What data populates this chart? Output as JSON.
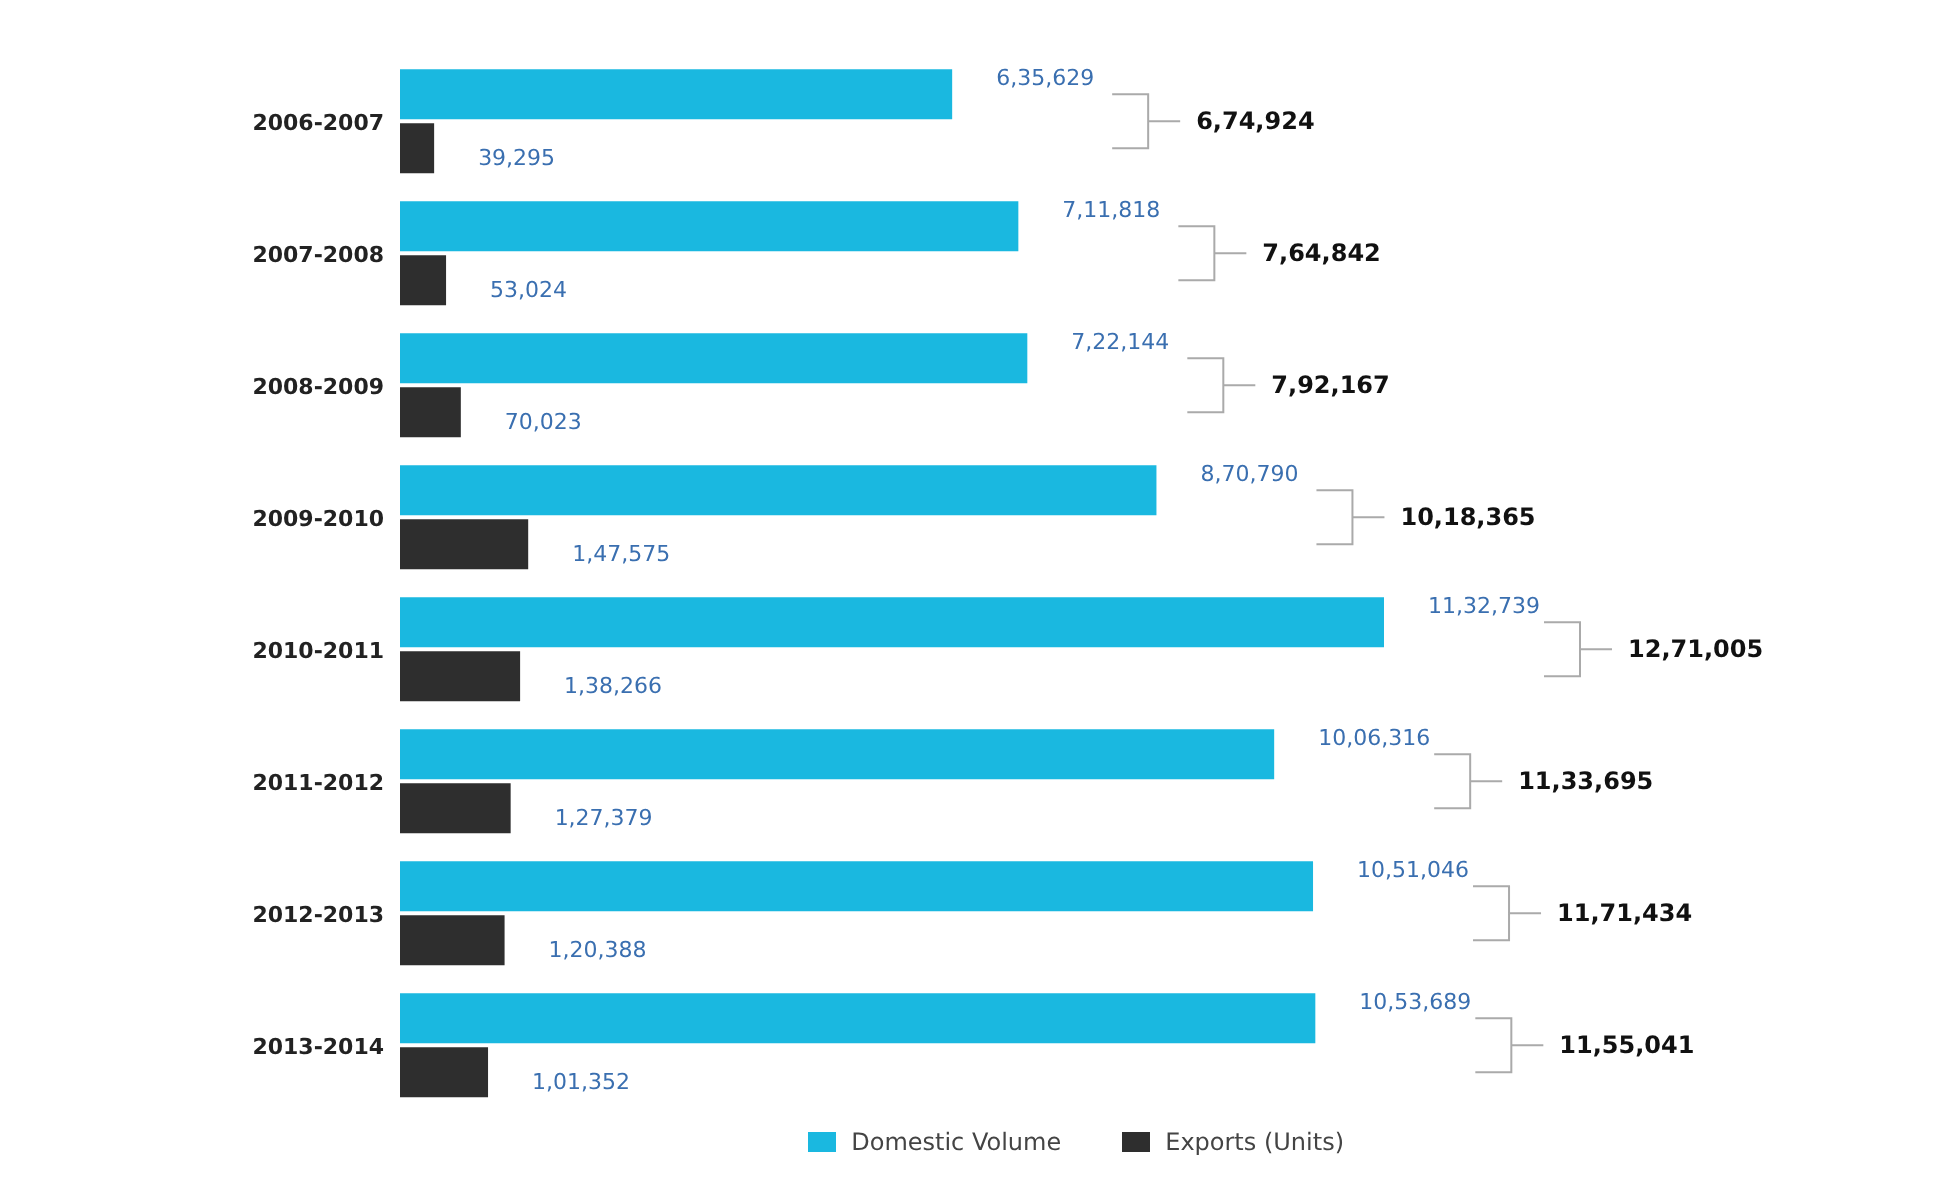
{
  "chart_data": {
    "type": "bar",
    "orientation": "horizontal",
    "categories": [
      "2006-2007",
      "2007-2008",
      "2008-2009",
      "2009-2010",
      "2010-2011",
      "2011-2012",
      "2012-2013",
      "2013-2014"
    ],
    "series": [
      {
        "name": "Domestic Volume",
        "color": "#1ab8e0",
        "values": [
          635629,
          711818,
          722144,
          870790,
          1132739,
          1006316,
          1051046,
          1053689
        ],
        "value_labels": [
          "6,35,629",
          "7,11,818",
          "7,22,144",
          "8,70,790",
          "11,32,739",
          "10,06,316",
          "10,51,046",
          "10,53,689"
        ]
      },
      {
        "name": "Exports (Units)",
        "color": "#2e2e2e",
        "values": [
          39295,
          53024,
          70023,
          147575,
          138266,
          127379,
          120388,
          101352
        ],
        "value_labels": [
          "39,295",
          "53,024",
          "70,023",
          "1,47,575",
          "1,38,266",
          "1,27,379",
          "1,20,388",
          "1,01,352"
        ]
      }
    ],
    "annotations": [
      "6,74,924",
      "7,64,842",
      "7,92,167",
      "10,18,365",
      "12,71,005",
      "11,33,695",
      "11,71,434",
      "11,55,041"
    ],
    "legend": "bottom right",
    "grid": false
  }
}
